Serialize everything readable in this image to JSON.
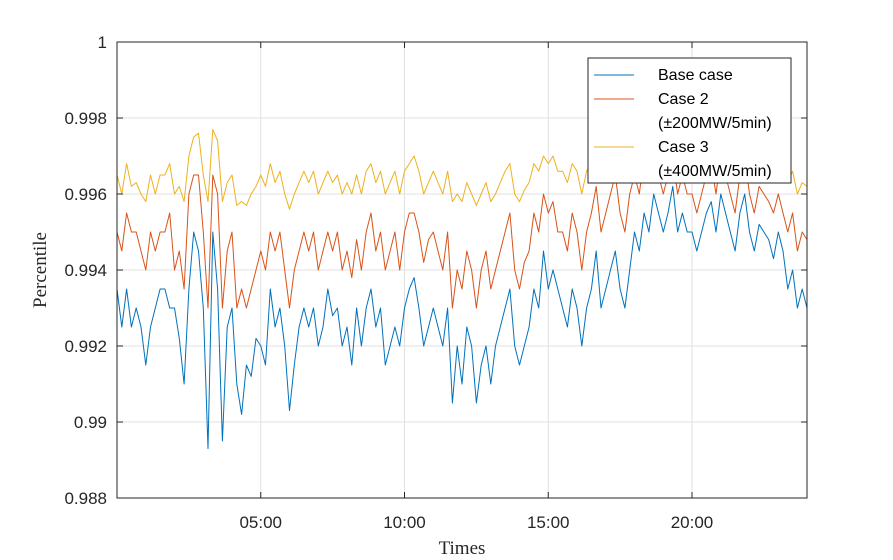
{
  "chart_data": {
    "type": "line",
    "xlabel": "Times",
    "ylabel": "Percentile",
    "xlim": [
      "00:00",
      "24:00"
    ],
    "ylim": [
      0.988,
      1.0
    ],
    "x_ticks": [
      "05:00",
      "10:00",
      "15:00",
      "20:00"
    ],
    "y_ticks": [
      "0.988",
      "0.99",
      "0.992",
      "0.994",
      "0.996",
      "0.998",
      "1"
    ],
    "grid": true,
    "legend_position": "top-right",
    "sampling_interval": "5 min",
    "series": [
      {
        "name": "Base case",
        "color": "#0072BD",
        "values": [
          0.9935,
          0.9925,
          0.9935,
          0.9925,
          0.993,
          0.9925,
          0.9915,
          0.9925,
          0.993,
          0.9935,
          0.9935,
          0.993,
          0.993,
          0.9922,
          0.991,
          0.9935,
          0.995,
          0.9945,
          0.993,
          0.9893,
          0.995,
          0.9935,
          0.9895,
          0.9925,
          0.993,
          0.991,
          0.9902,
          0.9915,
          0.9912,
          0.9922,
          0.992,
          0.9915,
          0.9935,
          0.9925,
          0.993,
          0.992,
          0.9903,
          0.9915,
          0.9925,
          0.993,
          0.9925,
          0.993,
          0.992,
          0.9925,
          0.9935,
          0.9928,
          0.993,
          0.992,
          0.9925,
          0.9915,
          0.993,
          0.992,
          0.993,
          0.9935,
          0.9925,
          0.993,
          0.9915,
          0.992,
          0.9925,
          0.992,
          0.993,
          0.9935,
          0.9938,
          0.993,
          0.992,
          0.9925,
          0.993,
          0.9925,
          0.992,
          0.993,
          0.9905,
          0.992,
          0.991,
          0.9925,
          0.992,
          0.9905,
          0.9915,
          0.992,
          0.991,
          0.992,
          0.9925,
          0.993,
          0.9935,
          0.992,
          0.9915,
          0.992,
          0.9925,
          0.9935,
          0.993,
          0.9945,
          0.9935,
          0.994,
          0.9935,
          0.993,
          0.9925,
          0.9935,
          0.993,
          0.992,
          0.993,
          0.9935,
          0.9945,
          0.993,
          0.9935,
          0.994,
          0.9945,
          0.9935,
          0.993,
          0.994,
          0.995,
          0.9945,
          0.9955,
          0.995,
          0.996,
          0.9955,
          0.995,
          0.9955,
          0.9962,
          0.995,
          0.9955,
          0.995,
          0.995,
          0.9945,
          0.995,
          0.9955,
          0.9958,
          0.995,
          0.996,
          0.9955,
          0.995,
          0.9945,
          0.9955,
          0.996,
          0.995,
          0.9945,
          0.9952,
          0.995,
          0.9948,
          0.9943,
          0.995,
          0.9945,
          0.9935,
          0.994,
          0.993,
          0.9935,
          0.993
        ]
      },
      {
        "name": "Case 2\n(±200MW/5min)",
        "color": "#D95319",
        "values": [
          0.995,
          0.9945,
          0.9955,
          0.995,
          0.995,
          0.9945,
          0.994,
          0.995,
          0.9945,
          0.995,
          0.995,
          0.9955,
          0.994,
          0.9945,
          0.9935,
          0.996,
          0.9965,
          0.9965,
          0.995,
          0.993,
          0.9965,
          0.996,
          0.993,
          0.9945,
          0.995,
          0.993,
          0.9935,
          0.993,
          0.9935,
          0.994,
          0.9945,
          0.994,
          0.995,
          0.9945,
          0.995,
          0.994,
          0.993,
          0.994,
          0.9945,
          0.995,
          0.9945,
          0.995,
          0.994,
          0.9945,
          0.995,
          0.9945,
          0.995,
          0.994,
          0.9945,
          0.9938,
          0.9948,
          0.994,
          0.995,
          0.9955,
          0.9945,
          0.995,
          0.994,
          0.9945,
          0.995,
          0.994,
          0.995,
          0.9955,
          0.9955,
          0.995,
          0.9942,
          0.9948,
          0.995,
          0.9945,
          0.994,
          0.995,
          0.993,
          0.994,
          0.9935,
          0.9945,
          0.994,
          0.993,
          0.994,
          0.9945,
          0.9935,
          0.994,
          0.9945,
          0.995,
          0.9955,
          0.994,
          0.9935,
          0.9942,
          0.9945,
          0.9955,
          0.995,
          0.996,
          0.9955,
          0.9958,
          0.995,
          0.995,
          0.9945,
          0.9955,
          0.995,
          0.994,
          0.995,
          0.9955,
          0.9962,
          0.995,
          0.9955,
          0.996,
          0.9965,
          0.9955,
          0.995,
          0.996,
          0.9965,
          0.996,
          0.997,
          0.9965,
          0.997,
          0.9965,
          0.996,
          0.9965,
          0.997,
          0.996,
          0.9965,
          0.996,
          0.996,
          0.9955,
          0.996,
          0.9965,
          0.9968,
          0.996,
          0.997,
          0.9965,
          0.996,
          0.9955,
          0.9965,
          0.997,
          0.996,
          0.9955,
          0.9962,
          0.996,
          0.9958,
          0.9955,
          0.996,
          0.9955,
          0.995,
          0.9955,
          0.9945,
          0.995,
          0.9948
        ]
      },
      {
        "name": "Case 3\n(±400MW/5min)",
        "color": "#EDB120",
        "values": [
          0.9965,
          0.996,
          0.9968,
          0.9962,
          0.9963,
          0.996,
          0.9958,
          0.9965,
          0.996,
          0.9965,
          0.9965,
          0.9968,
          0.996,
          0.9962,
          0.9958,
          0.997,
          0.9975,
          0.9976,
          0.9965,
          0.9958,
          0.9977,
          0.9974,
          0.9958,
          0.9963,
          0.9965,
          0.9957,
          0.9958,
          0.9957,
          0.996,
          0.9962,
          0.9965,
          0.9962,
          0.9968,
          0.9963,
          0.9966,
          0.996,
          0.9956,
          0.996,
          0.9963,
          0.9966,
          0.9963,
          0.9966,
          0.996,
          0.9963,
          0.9966,
          0.9963,
          0.9965,
          0.996,
          0.9963,
          0.996,
          0.9965,
          0.996,
          0.9966,
          0.9968,
          0.9963,
          0.9966,
          0.996,
          0.9963,
          0.9966,
          0.996,
          0.9966,
          0.9968,
          0.997,
          0.9966,
          0.996,
          0.9963,
          0.9966,
          0.9963,
          0.996,
          0.9966,
          0.9958,
          0.996,
          0.9958,
          0.9963,
          0.996,
          0.9957,
          0.996,
          0.9963,
          0.9958,
          0.996,
          0.9963,
          0.9966,
          0.9968,
          0.996,
          0.9958,
          0.9961,
          0.9963,
          0.9968,
          0.9966,
          0.997,
          0.9968,
          0.997,
          0.9966,
          0.9966,
          0.9963,
          0.9968,
          0.9966,
          0.996,
          0.9966,
          0.9968,
          0.9972,
          0.9966,
          0.9968,
          0.997,
          0.9973,
          0.9968,
          0.9966,
          0.997,
          0.9974,
          0.997,
          0.9976,
          0.9973,
          0.9976,
          0.9973,
          0.997,
          0.9973,
          0.9976,
          0.997,
          0.9973,
          0.997,
          0.997,
          0.9968,
          0.997,
          0.9973,
          0.9975,
          0.997,
          0.9976,
          0.9973,
          0.997,
          0.9968,
          0.9973,
          0.9976,
          0.997,
          0.9968,
          0.9971,
          0.997,
          0.9969,
          0.9966,
          0.997,
          0.9968,
          0.9963,
          0.9966,
          0.996,
          0.9963,
          0.9962
        ]
      }
    ]
  }
}
